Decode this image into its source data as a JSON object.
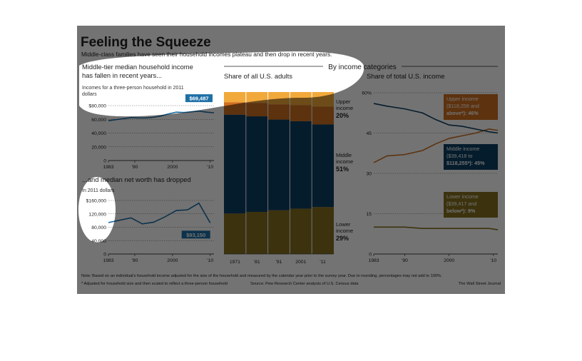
{
  "header": {
    "title": "Feeling the Squeeze",
    "subtitle": "Middle-class families have seen their household incomes plateau and then drop in recent years."
  },
  "footer": {
    "note": "Note: Based on an individual's household income adjusted for the size of the household and measured by the calendar year prior to the survey year. Due to rounding, percentages may not add to 100%.",
    "footnote": "* Adjusted for household size and then scaled to reflect a three-person household",
    "source": "Source: Pew Research Center analysis of U.S. Census data",
    "credit": "The Wall Street Journal"
  },
  "colors": {
    "upper": "#cf6f1f",
    "upper_light": "#f1a93b",
    "middle": "#0d3f63",
    "lower": "#857020",
    "line": "#1e6fa6",
    "dim_overlay": "#000000"
  },
  "chart_data": [
    {
      "type": "line",
      "title": "Middle-tier median household income has fallen in recent years...",
      "subtitle": "Incomes for a three-person household in 2011 dollars",
      "x_ticks": [
        "1983",
        "'90",
        "2000",
        "'10"
      ],
      "y_ticks": [
        "$80,000",
        "60,000",
        "40,000",
        "20,000",
        "0"
      ],
      "ylim": [
        0,
        80000
      ],
      "xlim": [
        1983,
        2011
      ],
      "x": [
        1983,
        1985,
        1987,
        1989,
        1991,
        1993,
        1995,
        1997,
        1999,
        2001,
        2003,
        2005,
        2007,
        2009,
        2011
      ],
      "values": [
        58000,
        59500,
        61000,
        62500,
        62000,
        62000,
        63000,
        65000,
        68000,
        70500,
        70000,
        71000,
        72000,
        70500,
        69487
      ],
      "annotation": "$69,487"
    },
    {
      "type": "line",
      "title": "...and median net worth has dropped",
      "subtitle": "In 2011 dollars",
      "x_ticks": [
        "1983",
        "'90",
        "2000",
        "'10"
      ],
      "y_ticks": [
        "$160,000",
        "120,000",
        "80,000",
        "40,000",
        "0"
      ],
      "ylim": [
        0,
        160000
      ],
      "xlim": [
        1983,
        2011
      ],
      "x": [
        1983,
        1989,
        1992,
        1995,
        1998,
        2001,
        2004,
        2007,
        2010
      ],
      "values": [
        94000,
        108000,
        90000,
        95000,
        111000,
        130000,
        132000,
        152000,
        93150
      ],
      "annotation": "$93,150"
    },
    {
      "type": "bar",
      "stacked": true,
      "title": "By income categories",
      "subtitle": "Share of all U.S. adults",
      "categories": [
        "1971",
        "'81",
        "'91",
        "2001",
        "'11"
      ],
      "ylim": [
        0,
        100
      ],
      "series": [
        {
          "name": "Lower income",
          "values": [
            25,
            26,
            27,
            28,
            29
          ]
        },
        {
          "name": "Middle income",
          "values": [
            61,
            59,
            56,
            54,
            51
          ]
        },
        {
          "name": "Upper income",
          "values": [
            14,
            15,
            17,
            18,
            20
          ]
        }
      ],
      "labels": [
        {
          "name": "Upper",
          "sub": "income",
          "value": "20%"
        },
        {
          "name": "Middle",
          "sub": "income",
          "value": "51%"
        },
        {
          "name": "Lower",
          "sub": "income",
          "value": "29%"
        }
      ]
    },
    {
      "type": "line",
      "title": "Share of total U.S. income",
      "x_ticks": [
        "1983",
        "'90",
        "2000",
        "'10"
      ],
      "y_ticks": [
        "60%",
        "45",
        "30",
        "15",
        "0"
      ],
      "ylim": [
        0,
        60
      ],
      "xlim": [
        1983,
        2011
      ],
      "series": [
        {
          "name": "Upper income",
          "range": "($118,256 and above*): 46%",
          "x": [
            1983,
            1986,
            1990,
            1994,
            1997,
            2000,
            2003,
            2006,
            2009,
            2011
          ],
          "values": [
            34,
            36.5,
            37,
            38.5,
            41,
            43,
            44,
            45,
            46.5,
            46
          ]
        },
        {
          "name": "Middle income",
          "range": "($39,418 to $118,255*): 45%",
          "x": [
            1983,
            1986,
            1990,
            1994,
            1997,
            2000,
            2003,
            2006,
            2009,
            2011
          ],
          "values": [
            56,
            55,
            54,
            52.5,
            50,
            48,
            47.5,
            46.5,
            45.5,
            45
          ]
        },
        {
          "name": "Lower income",
          "range": "($39,417 and below*): 9%",
          "x": [
            1983,
            1986,
            1990,
            1994,
            1997,
            2000,
            2003,
            2006,
            2009,
            2011
          ],
          "values": [
            10,
            10,
            10,
            9.5,
            9.5,
            9.5,
            9.5,
            9.5,
            9.5,
            9
          ]
        }
      ]
    }
  ]
}
